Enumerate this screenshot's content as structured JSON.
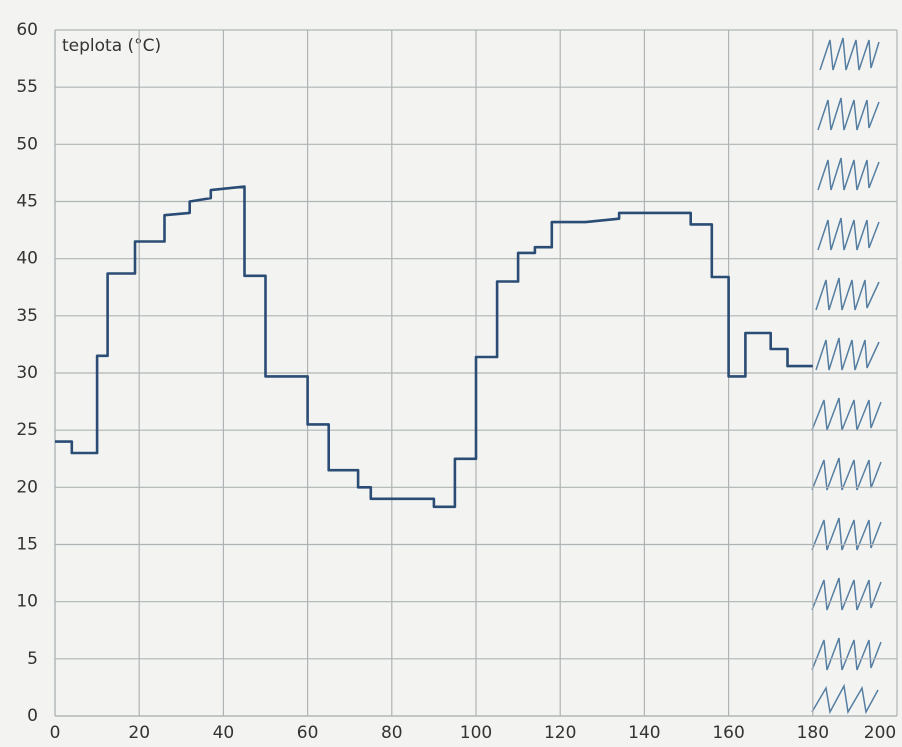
{
  "chart_data": {
    "type": "line",
    "y_label": "teplota (°C)",
    "x": [
      0,
      4,
      4,
      10,
      10,
      12.5,
      12.5,
      19,
      19,
      26,
      26,
      32,
      32,
      37,
      37,
      45,
      45,
      50,
      50,
      60,
      60,
      65,
      65,
      72,
      72,
      75,
      75,
      90,
      90,
      95,
      95,
      100,
      100,
      105,
      105,
      110,
      110,
      114,
      114,
      118,
      118,
      126,
      134,
      134,
      151,
      151,
      156,
      156,
      160,
      160,
      164,
      164,
      170,
      170,
      174,
      174,
      180
    ],
    "values": [
      24,
      24,
      23,
      23,
      31.5,
      31.5,
      38.7,
      38.7,
      41.5,
      41.5,
      43.8,
      44,
      45,
      45.3,
      46,
      46.3,
      38.5,
      38.5,
      29.7,
      29.7,
      25.5,
      25.5,
      21.5,
      21.5,
      20,
      20,
      19,
      19,
      18.3,
      18.3,
      22.5,
      22.5,
      31.4,
      31.4,
      38,
      38,
      40.5,
      40.5,
      41,
      41,
      43.2,
      43.2,
      43.5,
      44,
      44,
      43,
      43,
      38.4,
      38.4,
      29.7,
      29.7,
      33.5,
      33.5,
      32.1,
      32.1,
      30.6,
      30.6
    ],
    "color": "#2b4c74",
    "xlim": [
      0,
      200
    ],
    "ylim": [
      0,
      60
    ],
    "xticks": [
      0,
      20,
      40,
      60,
      80,
      100,
      120,
      140,
      160,
      180,
      200
    ],
    "yticks": [
      0,
      5,
      10,
      15,
      20,
      25,
      30,
      35,
      40,
      45,
      50,
      55,
      60
    ],
    "grid": true
  }
}
